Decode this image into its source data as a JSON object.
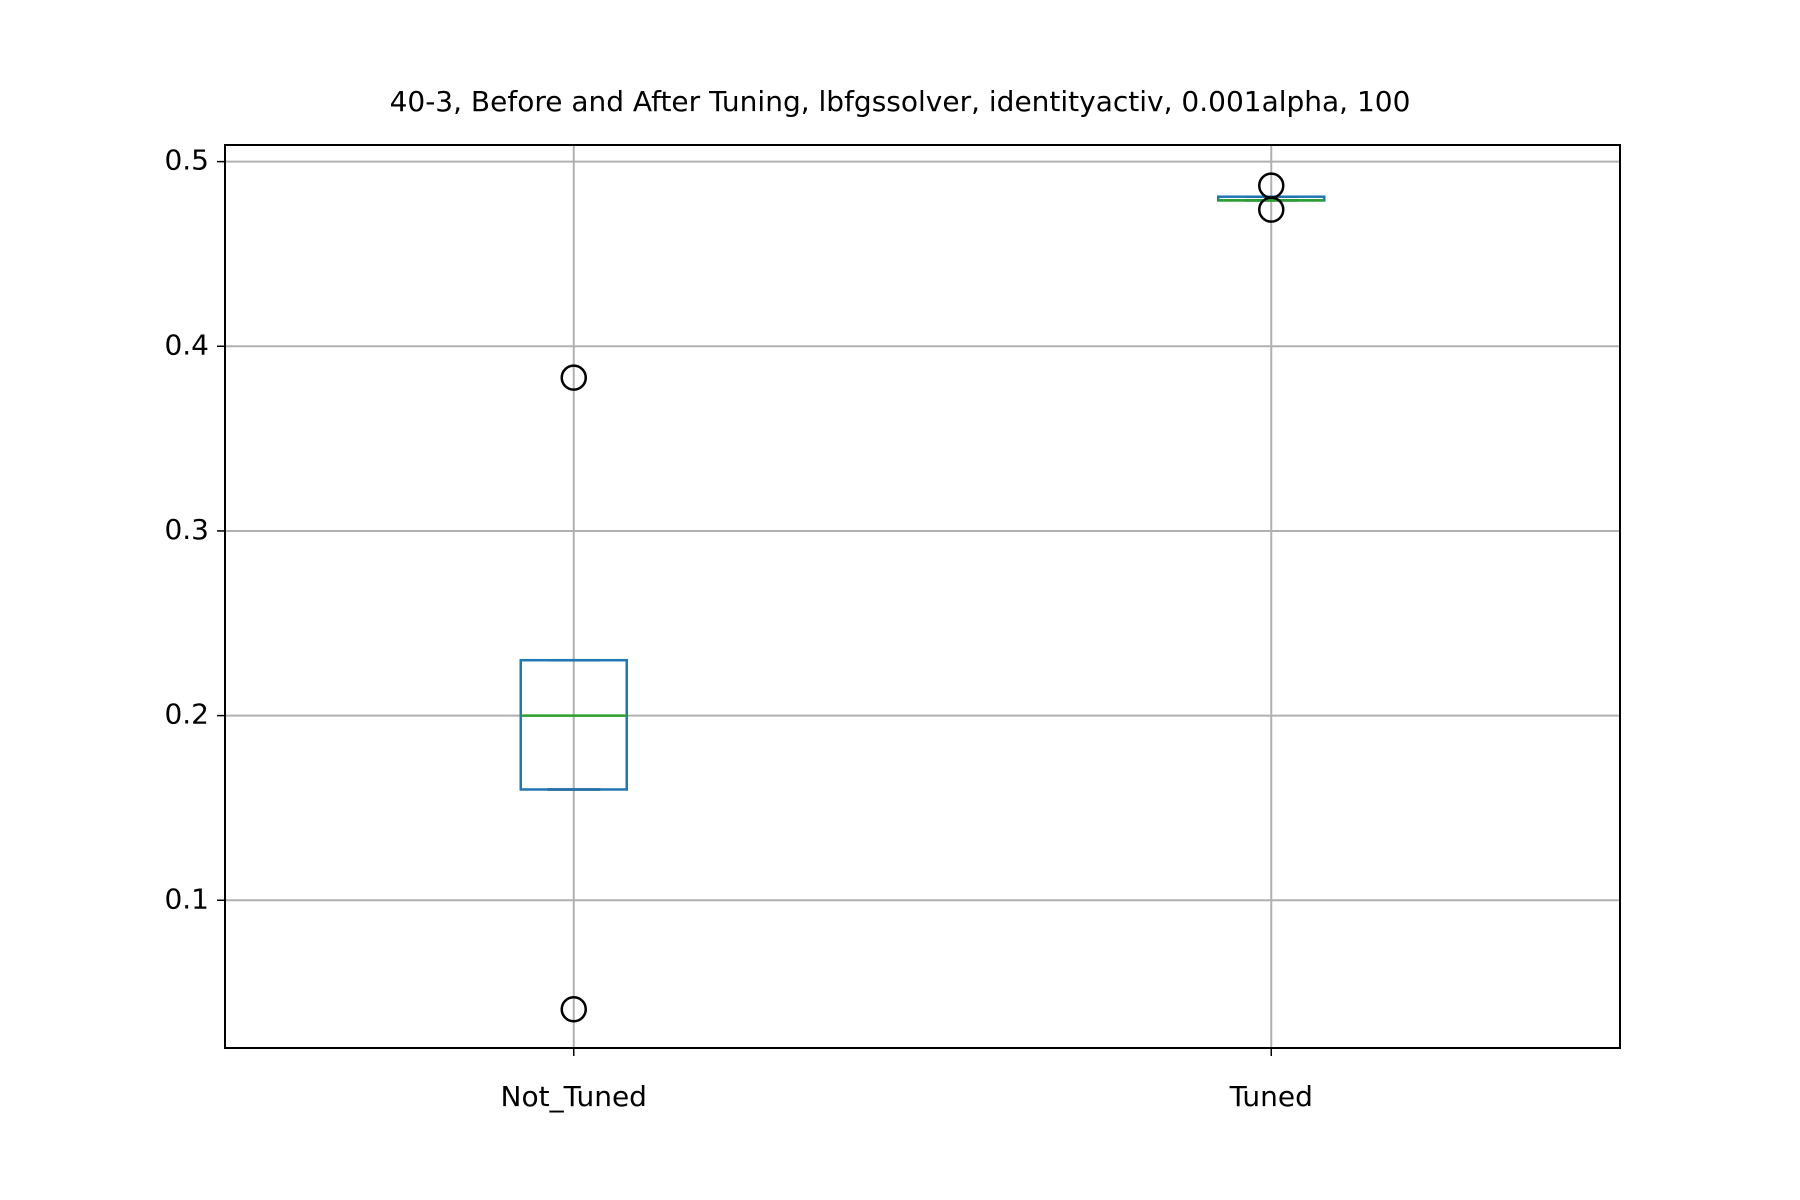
{
  "chart_data": {
    "type": "box",
    "title": "40-3, Before and After Tuning, lbfgssolver, identityactiv, 0.001alpha, 100",
    "categories": [
      "Not_Tuned",
      "Tuned"
    ],
    "boxes": [
      {
        "min": 0.16,
        "q1": 0.16,
        "median": 0.2,
        "q3": 0.23,
        "max": 0.23,
        "outliers": [
          0.383,
          0.041
        ]
      },
      {
        "min": 0.479,
        "q1": 0.479,
        "median": 0.479,
        "q3": 0.481,
        "max": 0.481,
        "outliers": [
          0.487,
          0.474
        ]
      }
    ],
    "box_color": "#1f77b4",
    "median_color": "#2ca02c",
    "whisker_color": "#000000",
    "ylim": [
      0.02,
      0.509
    ],
    "yticks": [
      0.1,
      0.2,
      0.3,
      0.4,
      0.5
    ],
    "grid": true
  }
}
